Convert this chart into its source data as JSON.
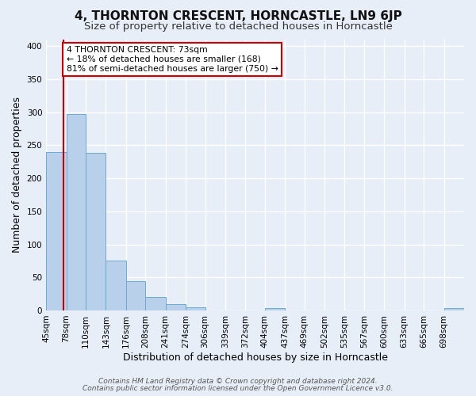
{
  "title": "4, THORNTON CRESCENT, HORNCASTLE, LN9 6JP",
  "subtitle": "Size of property relative to detached houses in Horncastle",
  "xlabel": "Distribution of detached houses by size in Horncastle",
  "ylabel": "Number of detached properties",
  "bar_labels": [
    "45sqm",
    "78sqm",
    "110sqm",
    "143sqm",
    "176sqm",
    "208sqm",
    "241sqm",
    "274sqm",
    "306sqm",
    "339sqm",
    "372sqm",
    "404sqm",
    "437sqm",
    "469sqm",
    "502sqm",
    "535sqm",
    "567sqm",
    "600sqm",
    "633sqm",
    "665sqm",
    "698sqm"
  ],
  "bar_heights": [
    240,
    297,
    238,
    76,
    44,
    20,
    9,
    5,
    0,
    0,
    0,
    3,
    0,
    0,
    0,
    0,
    0,
    0,
    0,
    0,
    3
  ],
  "bar_color": "#b8d0ea",
  "bar_edge_color": "#6aaad4",
  "ylim": [
    0,
    410
  ],
  "yticks": [
    0,
    50,
    100,
    150,
    200,
    250,
    300,
    350,
    400
  ],
  "vline_x": 73,
  "vline_color": "#cc0000",
  "bin_edges": [
    45,
    78,
    110,
    143,
    176,
    208,
    241,
    274,
    306,
    339,
    372,
    404,
    437,
    469,
    502,
    535,
    567,
    600,
    633,
    665,
    698,
    731
  ],
  "annotation_title": "4 THORNTON CRESCENT: 73sqm",
  "annotation_line1": "← 18% of detached houses are smaller (168)",
  "annotation_line2": "81% of semi-detached houses are larger (750) →",
  "annotation_box_color": "#ffffff",
  "annotation_box_edge": "#cc0000",
  "footer_line1": "Contains HM Land Registry data © Crown copyright and database right 2024.",
  "footer_line2": "Contains public sector information licensed under the Open Government Licence v3.0.",
  "background_color": "#e8eef8",
  "grid_color": "#ffffff",
  "title_fontsize": 11,
  "subtitle_fontsize": 9.5,
  "axis_label_fontsize": 9,
  "tick_fontsize": 7.5,
  "footer_fontsize": 6.5
}
